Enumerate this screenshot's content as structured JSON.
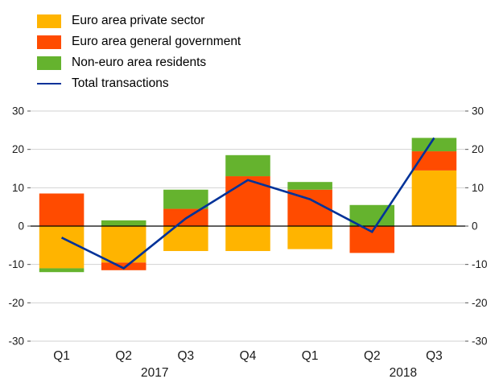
{
  "chart_data": {
    "type": "bar",
    "subtype": "stacked-bar-with-line",
    "categories": [
      "Q1",
      "Q2",
      "Q3",
      "Q4",
      "Q1",
      "Q2",
      "Q3"
    ],
    "year_labels": [
      {
        "label": "2017",
        "between": [
          1,
          2
        ]
      },
      {
        "label": "2018",
        "between": [
          5,
          6
        ]
      }
    ],
    "series": [
      {
        "name": "Euro area private sector",
        "kind": "bar",
        "color": "#FFB400",
        "values": [
          -11,
          -9.5,
          -6.5,
          -6.5,
          -6,
          0,
          14.5
        ]
      },
      {
        "name": "Euro area general government",
        "kind": "bar",
        "color": "#FF4B00",
        "values": [
          8.5,
          -2,
          4.5,
          13,
          9.5,
          -7,
          5
        ]
      },
      {
        "name": "Non-euro area residents",
        "kind": "bar",
        "color": "#65B32E",
        "values": [
          -1,
          1.5,
          5,
          5.5,
          2,
          5.5,
          3.5
        ]
      },
      {
        "name": "Total transactions",
        "kind": "line",
        "color": "#003299",
        "values": [
          -3,
          -11,
          2,
          12,
          7,
          -1.5,
          23
        ]
      }
    ],
    "ylim": [
      -30,
      30
    ],
    "yticks": [
      -30,
      -20,
      -10,
      0,
      10,
      20,
      30
    ],
    "grid": true,
    "gridline_color": "#d2d2d2",
    "zero_line_color": "#000000",
    "legend_position": "top-left",
    "title": "",
    "xlabel": "",
    "ylabel": ""
  }
}
